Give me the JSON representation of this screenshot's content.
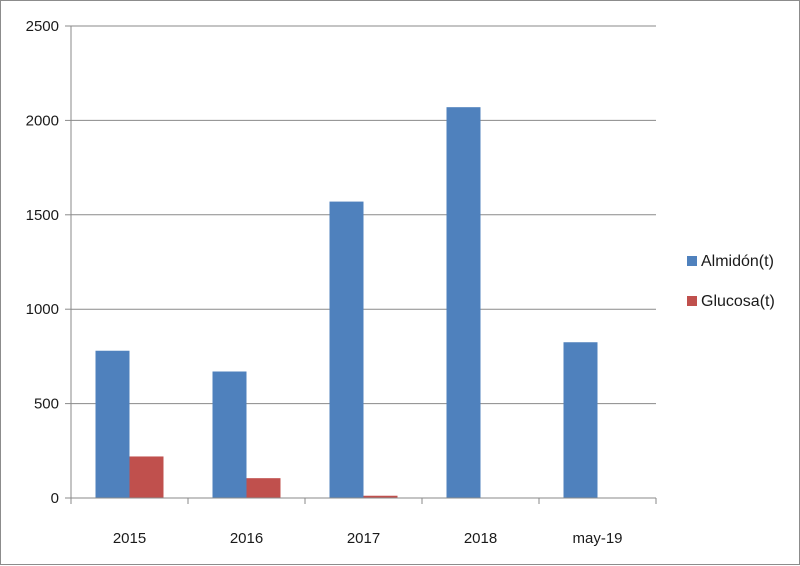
{
  "chart_data": {
    "type": "bar",
    "title": "",
    "xlabel": "",
    "ylabel": "",
    "categories": [
      "2015",
      "2016",
      "2017",
      "2018",
      "may-19"
    ],
    "series": [
      {
        "name": "Almidón(t)",
        "values": [
          780,
          670,
          1570,
          2070,
          825
        ],
        "color": "#4F81BD"
      },
      {
        "name": "Glucosa(t)",
        "values": [
          220,
          105,
          12,
          0,
          0
        ],
        "color": "#C0504D"
      }
    ],
    "ylim": [
      0,
      2500
    ],
    "yticks": [
      0,
      500,
      1000,
      1500,
      2000,
      2500
    ],
    "grid": true,
    "legend_position": "right"
  }
}
